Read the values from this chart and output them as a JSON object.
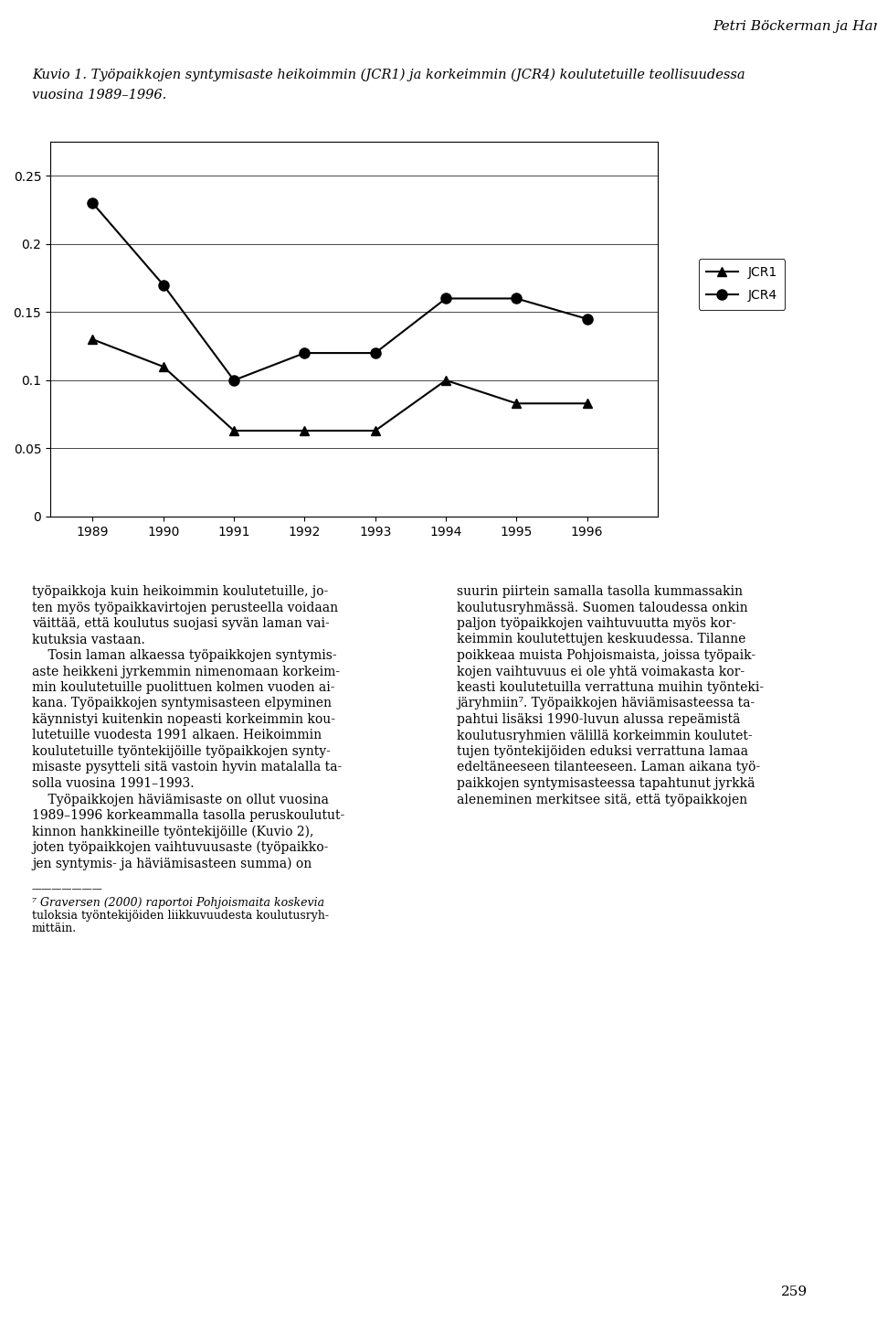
{
  "years": [
    1989,
    1990,
    1991,
    1992,
    1993,
    1994,
    1995,
    1996
  ],
  "JCR1": [
    0.13,
    0.11,
    0.063,
    0.063,
    0.063,
    0.1,
    0.083,
    0.083
  ],
  "JCR4": [
    0.23,
    0.17,
    0.1,
    0.12,
    0.12,
    0.16,
    0.16,
    0.145
  ],
  "ylim": [
    0,
    0.275
  ],
  "yticks": [
    0,
    0.05,
    0.1,
    0.15,
    0.2,
    0.25
  ],
  "ytick_labels": [
    "0",
    "0.05",
    "0.1",
    "0.15",
    "0.2",
    "0.25"
  ],
  "legend_labels": [
    "JCR1",
    "JCR4"
  ],
  "line_color": "#000000",
  "bg_color": "#ffffff",
  "figure_width": 9.6,
  "figure_height": 14.47,
  "header_text": "Petri Böckerman ja Hannu Piekkola",
  "caption_line1": "Kuvio 1. Työpaikkojen syntymisaste heikoimmin (JCR1) ja korkeimmin (JCR4) koulutetuille teollisuudessa",
  "caption_line2": "vuosina 1989–1996.",
  "left_col_text": [
    "työpaikkoja kuin heikoimmin koulutetuille, jo-",
    "ten myös työpaikkavirtojen perusteella voidaan",
    "väittää, että koulutus suojasi syvän laman vai-",
    "kutuksia vastaan.",
    "    Tosin laman alkaessa työpaikkojen syntymis-",
    "aste heikkeni jyrkemmin nimenomaan korkeim-",
    "min koulutetuille puolittuen kolmen vuoden ai-",
    "kana. Työpaikkojen syntymisasteen elpyminen",
    "käynnistyi kuitenkin nopeasti korkeimmin kou-",
    "lutetuille vuodesta 1991 alkaen. Heikoimmin",
    "koulutetuille työntekijöille työpaikkojen synty-",
    "misaste pysytteli sitä vastoin hyvin matalalla ta-",
    "solla vuosina 1991–1993.",
    "    Työpaikkojen häviämisaste on ollut vuosina",
    "1989–1996 korkeammalla tasolla peruskoulutut-",
    "kinnon hankkineille työntekijöille (Kuvio 2),",
    "joten työpaikkojen vaihtuvuusaste (työpaikko-",
    "jen syntymis- ja häviämisasteen summa) on"
  ],
  "right_col_text": [
    "suurin piirtein samalla tasolla kummassakin",
    "koulutusryhmässä. Suomen taloudessa onkin",
    "paljon työpaikkojen vaihtuvuutta myös kor-",
    "keimmin koulutettujen keskuudessa. Tilanne",
    "poikkeaa muista Pohjoismaista, joissa työpaik-",
    "kojen vaihtuvuus ei ole yhtä voimakasta kor-",
    "keasti koulutetuilla verrattuna muihin työnteki-",
    "järyhmiin⁷. Työpaikkojen häviämisasteessa ta-",
    "pahtui lisäksi 1990-luvun alussa repeämistä",
    "koulutusryhmien välillä korkeimmin koulutet-",
    "tujen työntekijöiden eduksi verrattuna lamaa",
    "edeltäneeseen tilanteeseen. Laman aikana työ-",
    "paikkojen syntymisasteessa tapahtunut jyrkkä",
    "aleneminen merkitsee sitä, että työpaikkojen"
  ],
  "footnote_rule": "———————",
  "footnote_text": [
    "⁷ Graversen (2000) raportoi Pohjoismaita koskevia",
    "tuloksia työntekijöiden liikkuvuudesta koulutusryh-",
    "mittäin."
  ],
  "page_number": "259"
}
